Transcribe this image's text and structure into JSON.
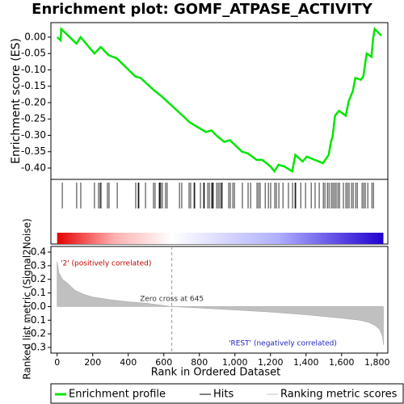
{
  "chart_data": [
    {
      "type": "line",
      "title": "Enrichment plot: GOMF_ATPASE_ACTIVITY",
      "ylabel": "Enrichment score (ES)",
      "xlim": [
        -35,
        1860
      ],
      "ylim": [
        -0.4346,
        0.0444
      ],
      "yticks": [
        {
          "value": 0,
          "label": "0.00"
        },
        {
          "value": -0.05,
          "label": "-0.05"
        },
        {
          "value": -0.1,
          "label": "-0.10"
        },
        {
          "value": -0.15,
          "label": "-0.15"
        },
        {
          "value": -0.2,
          "label": "-0.20"
        },
        {
          "value": -0.25,
          "label": "-0.25"
        },
        {
          "value": -0.3,
          "label": "-0.30"
        },
        {
          "value": -0.35,
          "label": "-0.35"
        },
        {
          "value": -0.4,
          "label": "-0.40"
        }
      ],
      "series": [
        {
          "name": "Enrichment profile",
          "color": "#00e600",
          "x": [
            0,
            20,
            23,
            109,
            132,
            210,
            245,
            290,
            336,
            440,
            470,
            540,
            586,
            686,
            745,
            836,
            868,
            895,
            940,
            972,
            1040,
            1072,
            1122,
            1154,
            1200,
            1222,
            1245,
            1277,
            1322,
            1340,
            1381,
            1404,
            1449,
            1495,
            1527,
            1540,
            1549,
            1563,
            1586,
            1623,
            1640,
            1663,
            1677,
            1709,
            1722,
            1741,
            1768,
            1777,
            1786,
            1823
          ],
          "values": [
            0,
            -0.01,
            0.025,
            -0.02,
            0.0,
            -0.05,
            -0.03,
            -0.055,
            -0.065,
            -0.12,
            -0.125,
            -0.16,
            -0.18,
            -0.23,
            -0.26,
            -0.29,
            -0.285,
            -0.3,
            -0.32,
            -0.315,
            -0.35,
            -0.355,
            -0.375,
            -0.375,
            -0.395,
            -0.41,
            -0.39,
            -0.395,
            -0.41,
            -0.36,
            -0.38,
            -0.365,
            -0.375,
            -0.385,
            -0.36,
            -0.32,
            -0.305,
            -0.24,
            -0.225,
            -0.24,
            -0.195,
            -0.165,
            -0.125,
            -0.13,
            -0.12,
            -0.05,
            -0.06,
            -0.005,
            0.025,
            0.005
          ]
        }
      ]
    },
    {
      "type": "hits",
      "xlim": [
        -35,
        1860
      ],
      "series": [
        {
          "name": "Hits",
          "color": "#000000",
          "x": [
            29,
            110,
            133,
            210,
            233,
            242,
            247,
            283,
            292,
            338,
            442,
            456,
            460,
            497,
            542,
            551,
            574,
            578,
            583,
            592,
            610,
            619,
            688,
            701,
            742,
            751,
            770,
            774,
            806,
            824,
            828,
            847,
            856,
            869,
            874,
            878,
            897,
            906,
            915,
            924,
            928,
            965,
            974,
            988,
            997,
            1042,
            1074,
            1088,
            1124,
            1133,
            1142,
            1170,
            1188,
            1201,
            1224,
            1233,
            1247,
            1270,
            1301,
            1324,
            1338,
            1342,
            1370,
            1397,
            1429,
            1451,
            1474,
            1497,
            1506,
            1520,
            1529,
            1542,
            1551,
            1560,
            1569,
            1579,
            1588,
            1610,
            1624,
            1633,
            1642,
            1656,
            1665,
            1679,
            1688,
            1715,
            1724,
            1733,
            1747,
            1770,
            1779
          ]
        }
      ]
    },
    {
      "type": "area",
      "ylabel": "Ranked list metric (Signal2Noise)",
      "xlabel": "Rank in Ordered Dataset",
      "xlim": [
        -35,
        1860
      ],
      "ylim": [
        -0.3415,
        0.4415
      ],
      "xticks": [
        0,
        200,
        400,
        600,
        800,
        {
          "value": 1000,
          "label": "1,000"
        },
        {
          "value": 1200,
          "label": "1,200"
        },
        {
          "value": 1400,
          "label": "1,400"
        },
        {
          "value": 1600,
          "label": "1,600"
        },
        {
          "value": 1800,
          "label": "1,800"
        }
      ],
      "yticks": [
        0.4,
        0.3,
        0.2,
        0.1,
        {
          "value": 0,
          "label": "0.0"
        },
        -0.1,
        -0.2,
        -0.3
      ],
      "zero_cross": 645,
      "zero_cross_label": "Zero cross at 645",
      "positive_label": "'2' (positively correlated)",
      "negative_label": "'REST' (negatively correlated)",
      "series": [
        {
          "name": "Ranking metric scores",
          "color": "#c0c0c0",
          "x": [
            0,
            10,
            30,
            60,
            100,
            150,
            200,
            300,
            400,
            500,
            645,
            800,
            1000,
            1200,
            1400,
            1600,
            1700,
            1750,
            1790,
            1815,
            1830,
            1835
          ],
          "values": [
            0.33,
            0.25,
            0.2,
            0.17,
            0.12,
            0.09,
            0.07,
            0.05,
            0.035,
            0.025,
            0,
            -0.01,
            -0.025,
            -0.04,
            -0.06,
            -0.085,
            -0.1,
            -0.115,
            -0.14,
            -0.17,
            -0.22,
            -0.28
          ]
        }
      ]
    }
  ]
}
